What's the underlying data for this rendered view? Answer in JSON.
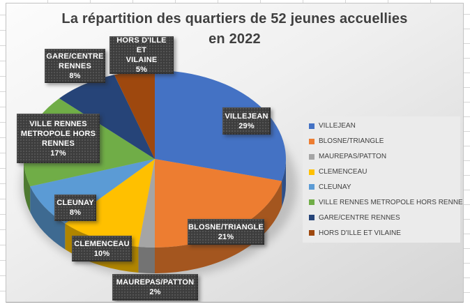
{
  "title": {
    "line1": "La répartition des quartiers  de 52  jeunes accuellies",
    "line2": "en 2022"
  },
  "chart_data": {
    "type": "pie",
    "style": "3d",
    "title": "La répartition des quartiers de 52 jeunes accuellies en 2022",
    "total_subjects": 52,
    "unit": "%",
    "categories": [
      "VILLEJEAN",
      "BLOSNE/TRIANGLE",
      "MAUREPAS/PATTON",
      "CLEMENCEAU",
      "CLEUNAY",
      "VILLE RENNES METROPOLE HORS RENNES",
      "GARE/CENTRE RENNES",
      "HORS D'ILLE ET VILAINE"
    ],
    "values": [
      29,
      21,
      2,
      10,
      8,
      17,
      8,
      5
    ],
    "colors": [
      "#4472C4",
      "#ED7D31",
      "#A5A5A5",
      "#FFC000",
      "#5B9BD5",
      "#70AD47",
      "#264478",
      "#9E480E"
    ],
    "side_colors": [
      "#2E4F88",
      "#A4561F",
      "#737373",
      "#B08500",
      "#3E6A91",
      "#4E7A31",
      "#1A2F53",
      "#6D3209"
    ],
    "legend_position": "right",
    "start_angle_deg": 0,
    "direction": "clockwise",
    "callouts": [
      {
        "lines": [
          "VILLEJEAN",
          "29%"
        ]
      },
      {
        "lines": [
          "BLOSNE/TRIANGLE",
          "21%"
        ]
      },
      {
        "lines": [
          "MAUREPAS/PATTON",
          "2%"
        ]
      },
      {
        "lines": [
          "CLEMENCEAU",
          "10%"
        ]
      },
      {
        "lines": [
          "CLEUNAY",
          "8%"
        ]
      },
      {
        "lines": [
          "VILLE RENNES",
          "METROPOLE HORS",
          "RENNES",
          "17%"
        ]
      },
      {
        "lines": [
          "GARE/CENTRE",
          "RENNES",
          "8%"
        ]
      },
      {
        "lines": [
          "HORS D'ILLE ET",
          "VILAINE",
          "5%"
        ]
      }
    ]
  }
}
